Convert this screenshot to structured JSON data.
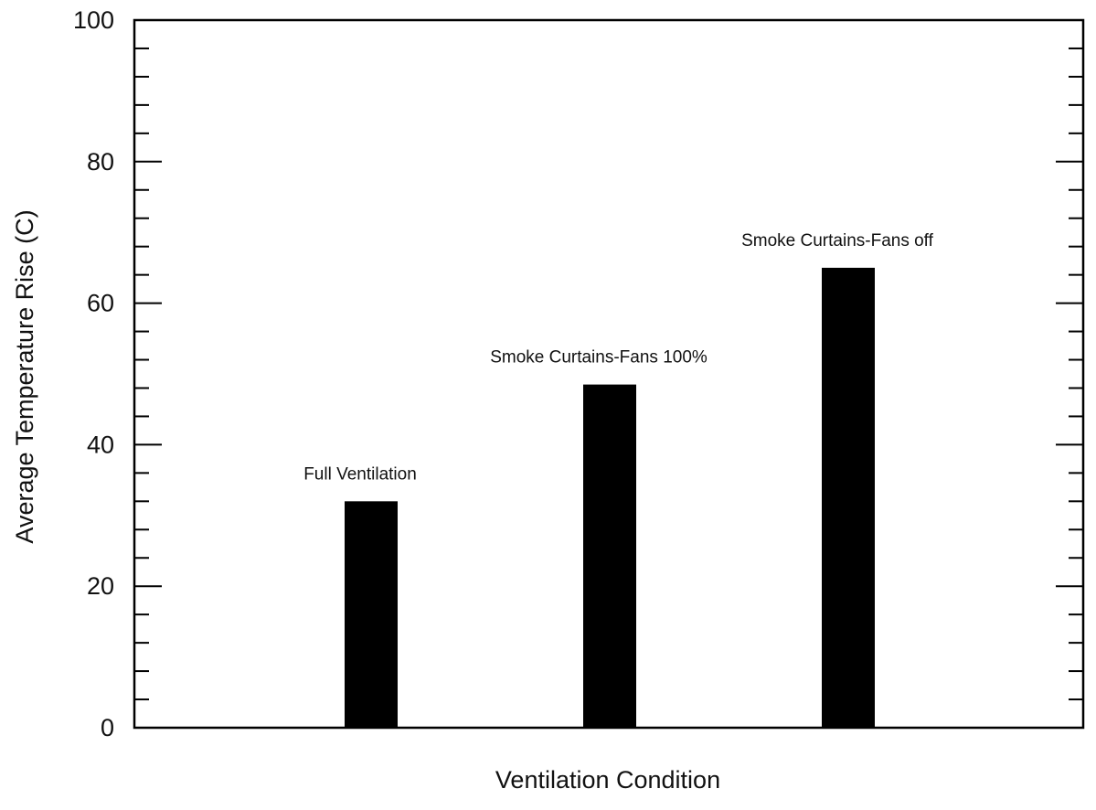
{
  "chart_data": {
    "type": "bar",
    "title": "",
    "xlabel": "Ventilation Condition",
    "ylabel": "Average Temperature Rise (C)",
    "ylim": [
      0,
      100
    ],
    "yticks": [
      0,
      20,
      40,
      60,
      80,
      100
    ],
    "grid": false,
    "categories": [
      "Full Ventilation",
      "Smoke Curtains-Fans 100%",
      "Smoke Curtains-Fans off"
    ],
    "values": [
      32,
      48.5,
      65
    ],
    "bar_color": "#000000"
  }
}
